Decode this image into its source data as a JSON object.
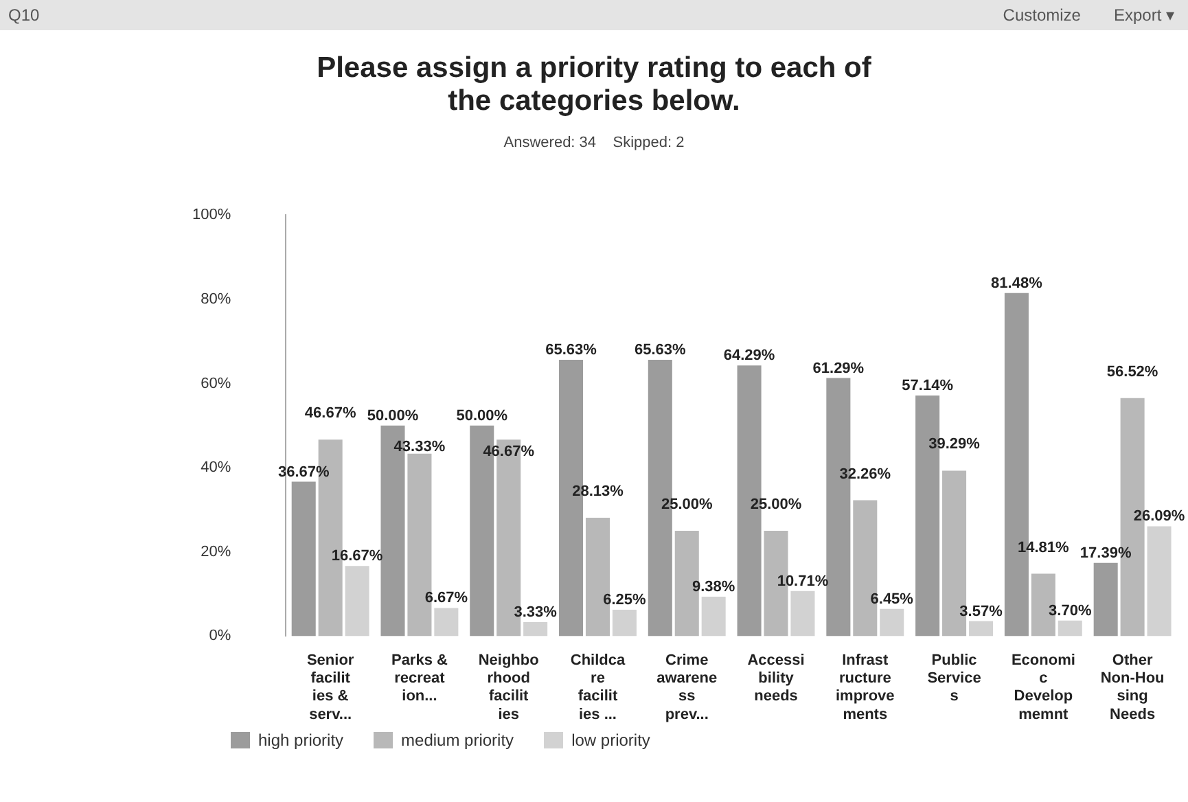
{
  "chart_data": {
    "type": "bar",
    "title": "Please assign a priority rating to each of the categories below.",
    "subtitle": "Answered: 34    Skipped: 2",
    "annotations": [
      "Q10",
      "Customize",
      "Export ▾"
    ],
    "categories": [
      "Senior facilities & serv...",
      "Parks & recreation...",
      "Neighborhood facilities",
      "Childcare facilities ...",
      "Crime awareness prev...",
      "Accessibility needs",
      "Infrastructure improvements",
      "Public Services",
      "Economic Developmemnt",
      "Other Non-Housing Needs"
    ],
    "series": [
      {
        "name": "high priority",
        "color": "#9c9c9c",
        "values": [
          36.67,
          50.0,
          50.0,
          65.63,
          65.63,
          64.29,
          61.29,
          57.14,
          81.48,
          17.39
        ],
        "value_labels": [
          "36.67%",
          "50.00%",
          "50.00%",
          "65.63%",
          "65.63%",
          "64.29%",
          "61.29%",
          "57.14%",
          "81.48%",
          "17.39%"
        ]
      },
      {
        "name": "medium priority",
        "color": "#b8b8b8",
        "values": [
          46.67,
          43.33,
          46.67,
          28.13,
          25.0,
          25.0,
          32.26,
          39.29,
          14.81,
          56.52
        ],
        "value_labels": [
          "46.67%",
          "43.33%",
          "46.67%",
          "28.13%",
          "25.00%",
          "25.00%",
          "32.26%",
          "39.29%",
          "14.81%",
          "56.52%"
        ]
      },
      {
        "name": "low priority",
        "color": "#d2d2d2",
        "values": [
          16.67,
          6.67,
          3.33,
          6.25,
          9.38,
          10.71,
          6.45,
          3.57,
          3.7,
          26.09
        ],
        "value_labels": [
          "16.67%",
          "6.67%",
          "3.33%",
          "6.25%",
          "9.38%",
          "10.71%",
          "6.45%",
          "3.57%",
          "3.70%",
          "26.09%"
        ]
      }
    ],
    "ylim": [
      0,
      100
    ],
    "yticks": [
      {
        "value": 0,
        "label": "0%"
      },
      {
        "value": 20,
        "label": "20%"
      },
      {
        "value": 40,
        "label": "40%"
      },
      {
        "value": 60,
        "label": "60%"
      },
      {
        "value": 80,
        "label": "80%"
      },
      {
        "value": 100,
        "label": "100%"
      }
    ],
    "grid": false,
    "legend": "bottom left"
  }
}
